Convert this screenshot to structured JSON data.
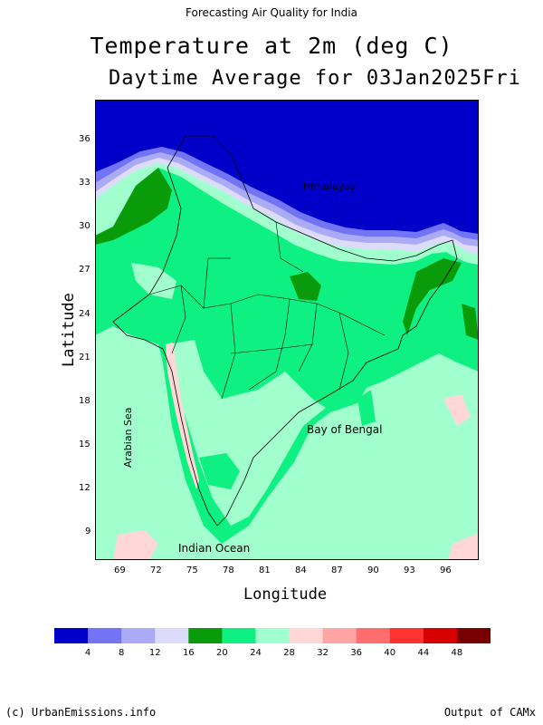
{
  "header": {
    "top_line": "Forecasting Air Quality for India",
    "title": "Temperature at 2m (deg C)",
    "subtitle": "Daytime Average for 03Jan2025Fri"
  },
  "map": {
    "x_axis_label": "Longitude",
    "y_axis_label": "Latitude",
    "x_ticks": [
      "69",
      "72",
      "75",
      "78",
      "81",
      "84",
      "87",
      "90",
      "93",
      "96"
    ],
    "y_ticks": [
      "36",
      "33",
      "30",
      "27",
      "24",
      "21",
      "18",
      "15",
      "12",
      "9"
    ],
    "labels": {
      "himalayas": "Himalayas",
      "arabian_sea": "Arabian Sea",
      "bay_of_bengal": "Bay of Bengal",
      "indian_ocean": "Indian Ocean"
    }
  },
  "legend": {
    "colors": [
      "#0000c8",
      "#7373f5",
      "#aaaaf5",
      "#dcdcfa",
      "#0a9b0a",
      "#0ff082",
      "#a0ffcd",
      "#ffd7d7",
      "#ffa5a5",
      "#ff6e6e",
      "#ff3232",
      "#d70000",
      "#780000"
    ],
    "labels": [
      "4",
      "8",
      "12",
      "16",
      "20",
      "24",
      "28",
      "32",
      "36",
      "40",
      "44",
      "48"
    ]
  },
  "footer": {
    "left": "(c) UrbanEmissions.info",
    "right": "Output of CAMx"
  }
}
